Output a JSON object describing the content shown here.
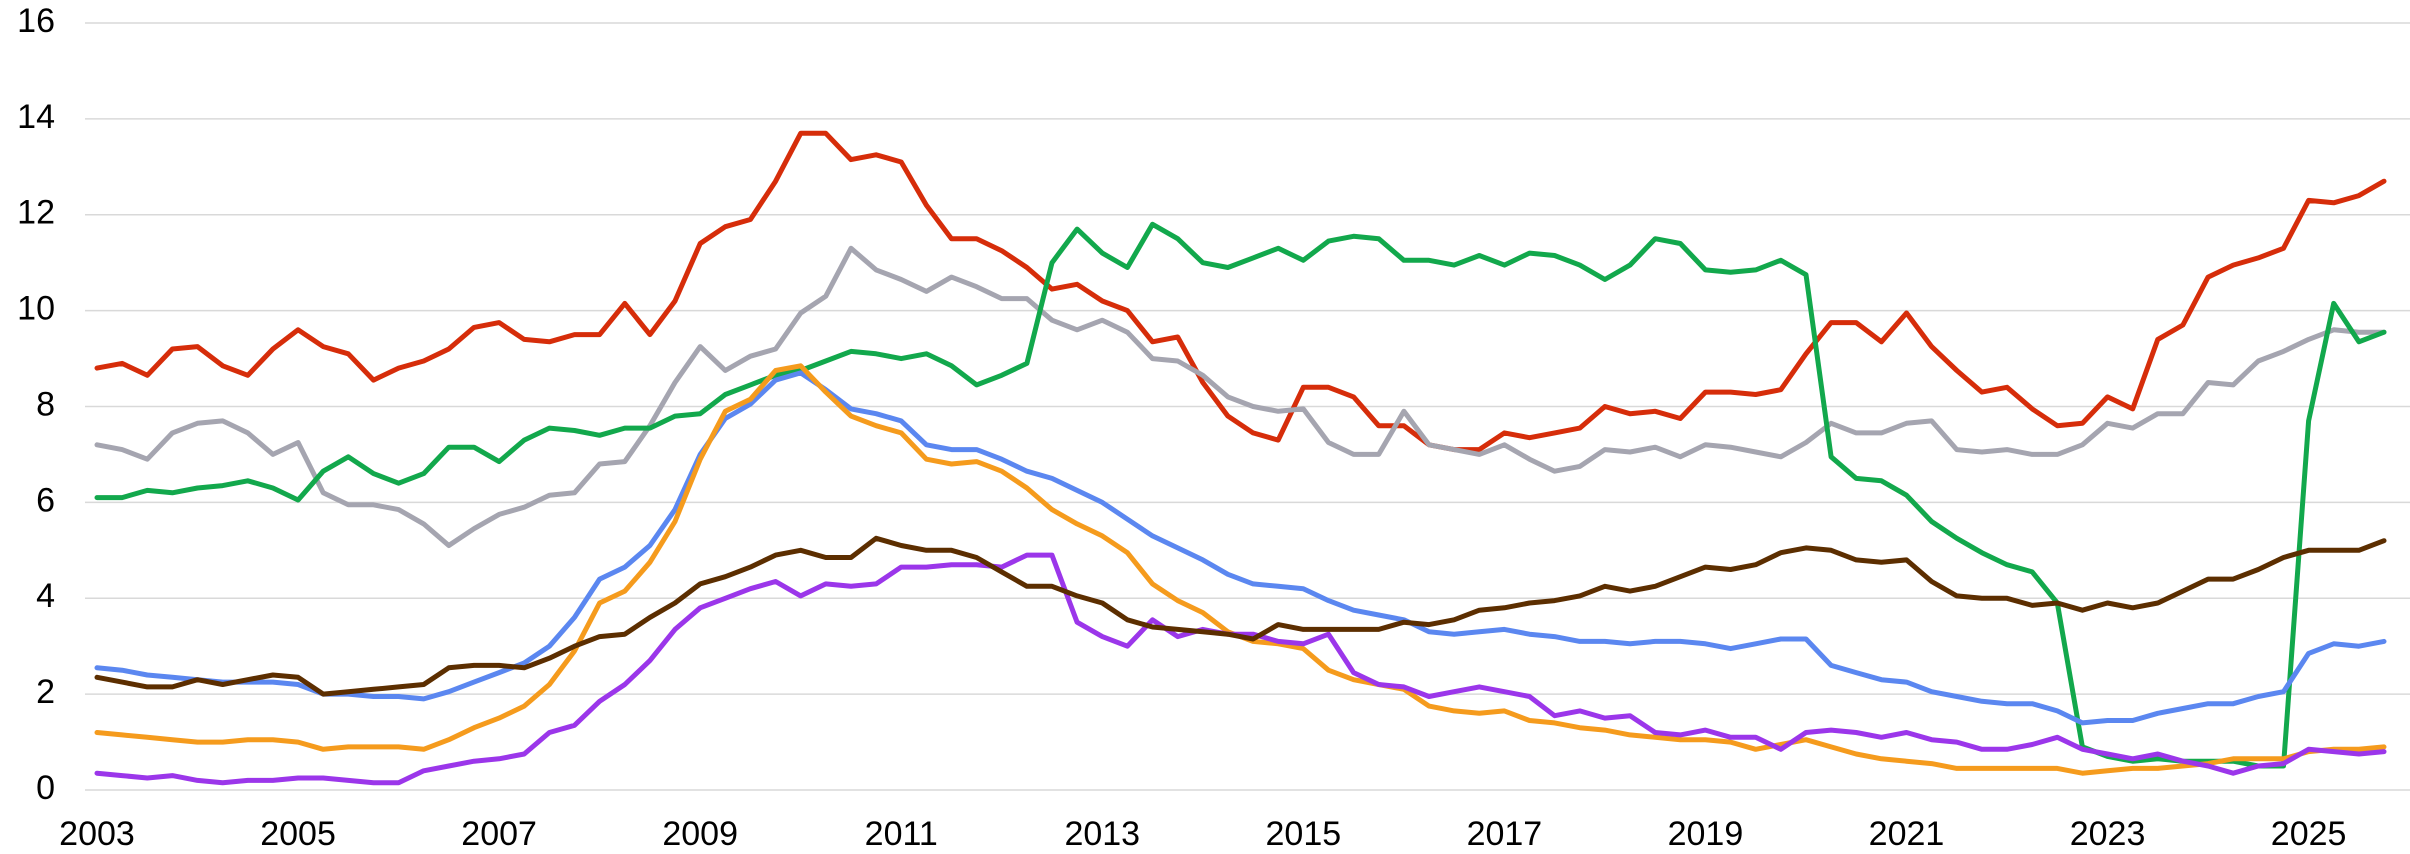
{
  "chart_data": {
    "type": "line",
    "x": [
      2003,
      2003.25,
      2003.5,
      2003.75,
      2004,
      2004.25,
      2004.5,
      2004.75,
      2005,
      2005.25,
      2005.5,
      2005.75,
      2006,
      2006.25,
      2006.5,
      2006.75,
      2007,
      2007.25,
      2007.5,
      2007.75,
      2008,
      2008.25,
      2008.5,
      2008.75,
      2009,
      2009.25,
      2009.5,
      2009.75,
      2010,
      2010.25,
      2010.5,
      2010.75,
      2011,
      2011.25,
      2011.5,
      2011.75,
      2012,
      2012.25,
      2012.5,
      2012.75,
      2013,
      2013.25,
      2013.5,
      2013.75,
      2014,
      2014.25,
      2014.5,
      2014.75,
      2015,
      2015.25,
      2015.5,
      2015.75,
      2016,
      2016.25,
      2016.5,
      2016.75,
      2017,
      2017.25,
      2017.5,
      2017.75,
      2018,
      2018.25,
      2018.5,
      2018.75,
      2019,
      2019.25,
      2019.5,
      2019.75,
      2020,
      2020.25,
      2020.5,
      2020.75,
      2021,
      2021.25,
      2021.5,
      2021.75,
      2022,
      2022.25,
      2022.5,
      2022.75,
      2023,
      2023.25,
      2023.5,
      2023.75,
      2024,
      2024.25,
      2024.5,
      2024.75,
      2025,
      2025.25,
      2025.5,
      2025.75
    ],
    "series": [
      {
        "color": "#d62d0a",
        "values": [
          8.8,
          8.9,
          8.65,
          9.2,
          9.25,
          8.85,
          8.65,
          9.2,
          9.6,
          9.25,
          9.1,
          8.55,
          8.8,
          8.95,
          9.2,
          9.65,
          9.75,
          9.4,
          9.35,
          9.5,
          9.5,
          10.15,
          9.5,
          10.2,
          11.4,
          11.75,
          11.9,
          12.7,
          13.7,
          13.7,
          13.15,
          13.25,
          13.1,
          12.2,
          11.5,
          11.5,
          11.25,
          10.9,
          10.45,
          10.55,
          10.2,
          10.0,
          9.35,
          9.45,
          8.5,
          7.8,
          7.45,
          7.3,
          8.4,
          8.4,
          8.2,
          7.6,
          7.6,
          7.2,
          7.1,
          7.1,
          7.45,
          7.35,
          7.45,
          7.55,
          8.0,
          7.85,
          7.9,
          7.75,
          8.3,
          8.3,
          8.25,
          8.35,
          9.1,
          9.75,
          9.75,
          9.35,
          9.95,
          9.25,
          8.75,
          8.3,
          8.4,
          7.95,
          7.6,
          7.65,
          8.2,
          7.95,
          9.4,
          9.7,
          10.7,
          10.95,
          11.1,
          11.3,
          12.3,
          12.25,
          12.4,
          12.7
        ]
      },
      {
        "color": "#a5a5b0",
        "values": [
          7.2,
          7.1,
          6.9,
          7.45,
          7.65,
          7.7,
          7.45,
          7.0,
          7.25,
          6.2,
          5.95,
          5.95,
          5.85,
          5.55,
          5.1,
          5.45,
          5.75,
          5.9,
          6.15,
          6.2,
          6.8,
          6.85,
          7.6,
          8.5,
          9.25,
          8.75,
          9.05,
          9.2,
          9.95,
          10.3,
          11.3,
          10.85,
          10.65,
          10.4,
          10.7,
          10.5,
          10.25,
          10.25,
          9.8,
          9.6,
          9.8,
          9.55,
          9.0,
          8.95,
          8.65,
          8.2,
          8.0,
          7.9,
          7.95,
          7.25,
          7.0,
          7.0,
          7.9,
          7.2,
          7.1,
          7.0,
          7.2,
          6.9,
          6.65,
          6.75,
          7.1,
          7.05,
          7.15,
          6.95,
          7.2,
          7.15,
          7.05,
          6.95,
          7.25,
          7.65,
          7.45,
          7.45,
          7.65,
          7.7,
          7.1,
          7.05,
          7.1,
          7.0,
          7.0,
          7.2,
          7.65,
          7.55,
          7.85,
          7.85,
          8.5,
          8.45,
          8.95,
          9.15,
          9.4,
          9.6,
          9.55,
          9.55
        ]
      },
      {
        "color": "#12a84c",
        "values": [
          6.1,
          6.1,
          6.25,
          6.2,
          6.3,
          6.35,
          6.45,
          6.3,
          6.05,
          6.65,
          6.95,
          6.6,
          6.4,
          6.6,
          7.15,
          7.15,
          6.85,
          7.3,
          7.55,
          7.5,
          7.4,
          7.55,
          7.55,
          7.8,
          7.85,
          8.25,
          8.45,
          8.65,
          8.75,
          8.95,
          9.15,
          9.1,
          9.0,
          9.1,
          8.85,
          8.45,
          8.65,
          8.9,
          11.0,
          11.7,
          11.2,
          10.9,
          11.8,
          11.5,
          11.0,
          10.9,
          11.1,
          11.3,
          11.05,
          11.45,
          11.55,
          11.5,
          11.05,
          11.05,
          10.95,
          11.15,
          10.95,
          11.2,
          11.15,
          10.95,
          10.65,
          10.95,
          11.5,
          11.4,
          10.85,
          10.8,
          10.85,
          11.05,
          10.75,
          6.95,
          6.5,
          6.45,
          6.15,
          5.6,
          5.25,
          4.95,
          4.7,
          4.55,
          3.9,
          0.9,
          0.7,
          0.6,
          0.65,
          0.6,
          0.6,
          0.6,
          0.5,
          0.5,
          7.7,
          10.15,
          9.35,
          9.55
        ]
      },
      {
        "color": "#5b87f0",
        "values": [
          2.55,
          2.5,
          2.4,
          2.35,
          2.3,
          2.25,
          2.25,
          2.25,
          2.2,
          2.0,
          2.0,
          1.95,
          1.95,
          1.9,
          2.05,
          2.25,
          2.45,
          2.65,
          3.0,
          3.6,
          4.4,
          4.65,
          5.1,
          5.85,
          7.0,
          7.75,
          8.05,
          8.55,
          8.7,
          8.35,
          7.95,
          7.85,
          7.7,
          7.2,
          7.1,
          7.1,
          6.9,
          6.65,
          6.5,
          6.25,
          6.0,
          5.65,
          5.3,
          5.05,
          4.8,
          4.5,
          4.3,
          4.25,
          4.2,
          3.95,
          3.75,
          3.65,
          3.55,
          3.3,
          3.25,
          3.3,
          3.35,
          3.25,
          3.2,
          3.1,
          3.1,
          3.05,
          3.1,
          3.1,
          3.05,
          2.95,
          3.05,
          3.15,
          3.15,
          2.6,
          2.45,
          2.3,
          2.25,
          2.05,
          1.95,
          1.85,
          1.8,
          1.8,
          1.65,
          1.4,
          1.45,
          1.45,
          1.6,
          1.7,
          1.8,
          1.8,
          1.95,
          2.05,
          2.85,
          3.05,
          3.0,
          3.1
        ]
      },
      {
        "color": "#f59b1d",
        "values": [
          1.2,
          1.15,
          1.1,
          1.05,
          1.0,
          1.0,
          1.05,
          1.05,
          1.0,
          0.85,
          0.9,
          0.9,
          0.9,
          0.85,
          1.05,
          1.3,
          1.5,
          1.75,
          2.2,
          2.9,
          3.9,
          4.15,
          4.75,
          5.6,
          6.9,
          7.9,
          8.15,
          8.75,
          8.85,
          8.3,
          7.8,
          7.6,
          7.45,
          6.9,
          6.8,
          6.85,
          6.65,
          6.3,
          5.85,
          5.55,
          5.3,
          4.95,
          4.3,
          3.95,
          3.7,
          3.3,
          3.1,
          3.05,
          2.95,
          2.5,
          2.3,
          2.2,
          2.1,
          1.75,
          1.65,
          1.6,
          1.65,
          1.45,
          1.4,
          1.3,
          1.25,
          1.15,
          1.1,
          1.05,
          1.05,
          1.0,
          0.85,
          0.95,
          1.05,
          0.9,
          0.75,
          0.65,
          0.6,
          0.55,
          0.45,
          0.45,
          0.45,
          0.45,
          0.45,
          0.35,
          0.4,
          0.45,
          0.45,
          0.5,
          0.55,
          0.65,
          0.65,
          0.65,
          0.8,
          0.85,
          0.85,
          0.9
        ]
      },
      {
        "color": "#9b36ea",
        "values": [
          0.35,
          0.3,
          0.25,
          0.3,
          0.2,
          0.15,
          0.2,
          0.2,
          0.25,
          0.25,
          0.2,
          0.15,
          0.15,
          0.4,
          0.5,
          0.6,
          0.65,
          0.75,
          1.2,
          1.35,
          1.85,
          2.2,
          2.7,
          3.35,
          3.8,
          4.0,
          4.2,
          4.35,
          4.05,
          4.3,
          4.25,
          4.3,
          4.65,
          4.65,
          4.7,
          4.7,
          4.65,
          4.9,
          4.9,
          3.5,
          3.2,
          3.0,
          3.55,
          3.2,
          3.35,
          3.25,
          3.25,
          3.1,
          3.05,
          3.25,
          2.45,
          2.2,
          2.15,
          1.95,
          2.05,
          2.15,
          2.05,
          1.95,
          1.55,
          1.65,
          1.5,
          1.55,
          1.2,
          1.15,
          1.25,
          1.1,
          1.1,
          0.85,
          1.2,
          1.25,
          1.2,
          1.1,
          1.2,
          1.05,
          1.0,
          0.85,
          0.85,
          0.95,
          1.1,
          0.85,
          0.75,
          0.65,
          0.75,
          0.6,
          0.5,
          0.35,
          0.5,
          0.55,
          0.85,
          0.8,
          0.75,
          0.8
        ]
      },
      {
        "color": "#5c2e00",
        "values": [
          2.35,
          2.25,
          2.15,
          2.15,
          2.3,
          2.2,
          2.3,
          2.4,
          2.35,
          2.0,
          2.05,
          2.1,
          2.15,
          2.2,
          2.55,
          2.6,
          2.6,
          2.55,
          2.75,
          3.0,
          3.2,
          3.25,
          3.6,
          3.9,
          4.3,
          4.45,
          4.65,
          4.9,
          5.0,
          4.85,
          4.85,
          5.25,
          5.1,
          5.0,
          5.0,
          4.85,
          4.55,
          4.25,
          4.25,
          4.05,
          3.9,
          3.55,
          3.4,
          3.35,
          3.3,
          3.25,
          3.15,
          3.45,
          3.35,
          3.35,
          3.35,
          3.35,
          3.5,
          3.45,
          3.55,
          3.75,
          3.8,
          3.9,
          3.95,
          4.05,
          4.25,
          4.15,
          4.25,
          4.45,
          4.65,
          4.6,
          4.7,
          4.95,
          5.05,
          5.0,
          4.8,
          4.75,
          4.8,
          4.35,
          4.05,
          4.0,
          4.0,
          3.85,
          3.9,
          3.75,
          3.9,
          3.8,
          3.9,
          4.15,
          4.4,
          4.4,
          4.6,
          4.85,
          5.0,
          5.0,
          5.0,
          5.2
        ]
      }
    ],
    "xlim": [
      2003,
      2025.75
    ],
    "xticks": [
      2003,
      2005,
      2007,
      2009,
      2011,
      2013,
      2015,
      2017,
      2019,
      2021,
      2023,
      2025
    ],
    "ylim": [
      0,
      16
    ],
    "yticks": [
      0,
      2,
      4,
      6,
      8,
      10,
      12,
      14,
      16
    ],
    "grid": true
  }
}
